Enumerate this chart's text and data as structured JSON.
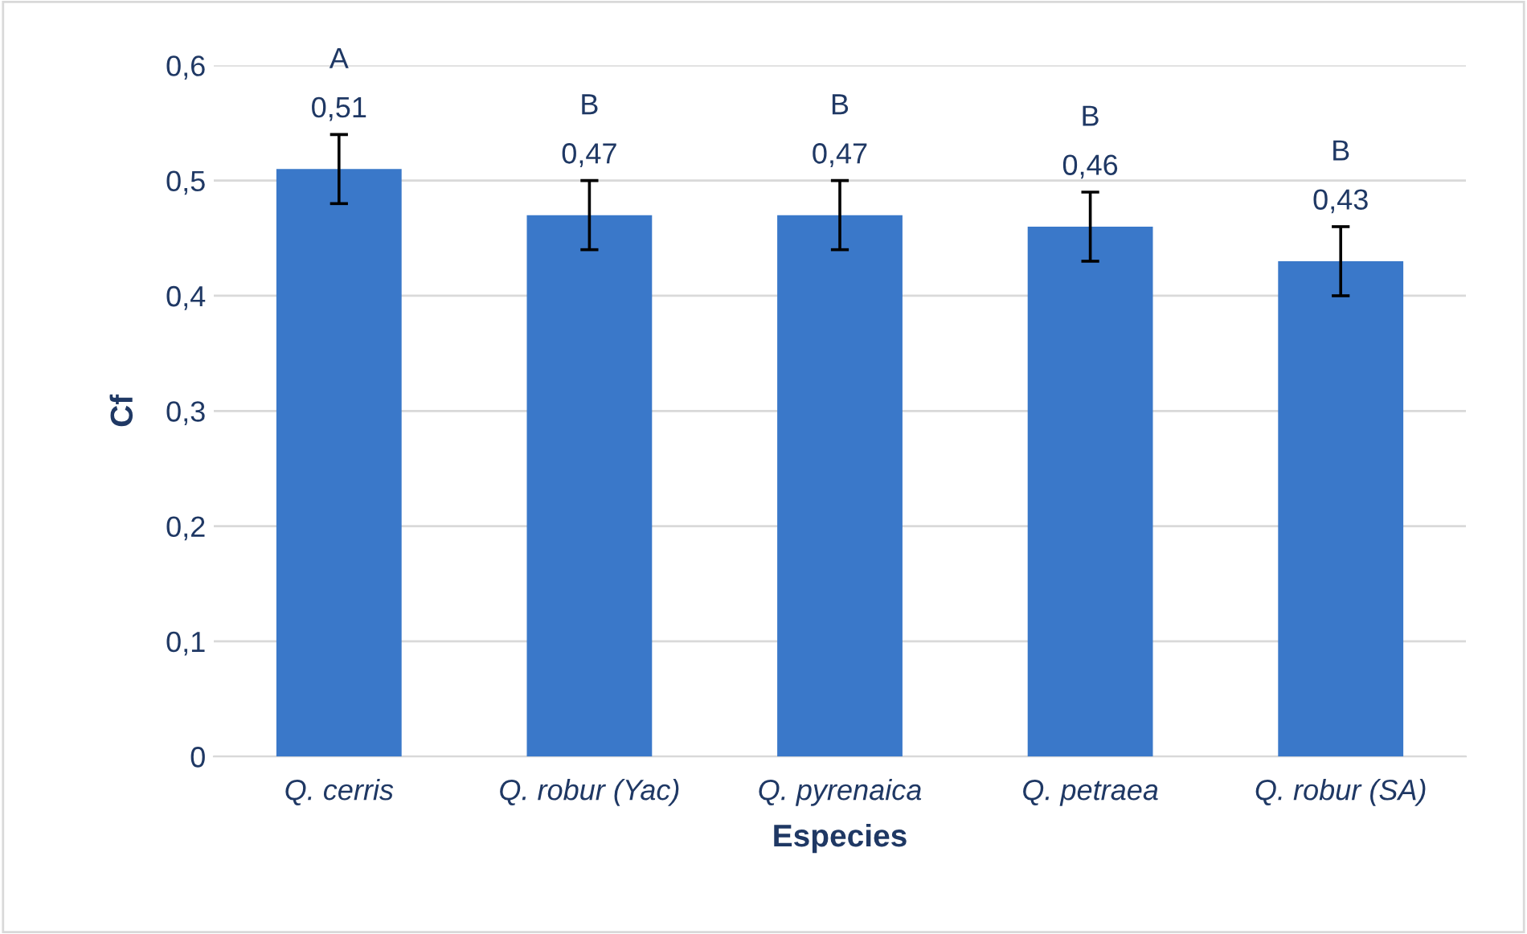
{
  "chart_data": {
    "type": "bar",
    "xlabel": "Especies",
    "ylabel": "Cf",
    "categories": [
      "Q. cerris",
      "Q. robur (Yac)",
      "Q. pyrenaica",
      "Q. petraea",
      "Q. robur (SA)"
    ],
    "values": [
      0.51,
      0.47,
      0.47,
      0.46,
      0.43
    ],
    "errors": [
      0.03,
      0.03,
      0.03,
      0.03,
      0.03
    ],
    "color": "#3a78c9",
    "value_labels": [
      "0,51",
      "0,47",
      "0,47",
      "0,46",
      "0,43"
    ],
    "annotations": [
      {
        "text": "A",
        "x": "Q. cerris",
        "y": 0.54
      },
      {
        "text": "B",
        "x": "Q. robur (Yac)",
        "y": 0.5
      },
      {
        "text": "B",
        "x": "Q. pyrenaica",
        "y": 0.5
      },
      {
        "text": "B",
        "x": "Q. petraea",
        "y": 0.49
      },
      {
        "text": "B",
        "x": "Q. robur (SA)",
        "y": 0.46
      }
    ],
    "ylim": [
      0,
      0.6
    ],
    "yticks": [
      {
        "value": 0,
        "label": "0"
      },
      {
        "value": 0.1,
        "label": "0,1"
      },
      {
        "value": 0.2,
        "label": "0,2"
      },
      {
        "value": 0.3,
        "label": "0,3"
      },
      {
        "value": 0.4,
        "label": "0,4"
      },
      {
        "value": 0.5,
        "label": "0,5"
      },
      {
        "value": 0.6,
        "label": "0,6"
      }
    ],
    "grid": "y",
    "legend": false
  }
}
